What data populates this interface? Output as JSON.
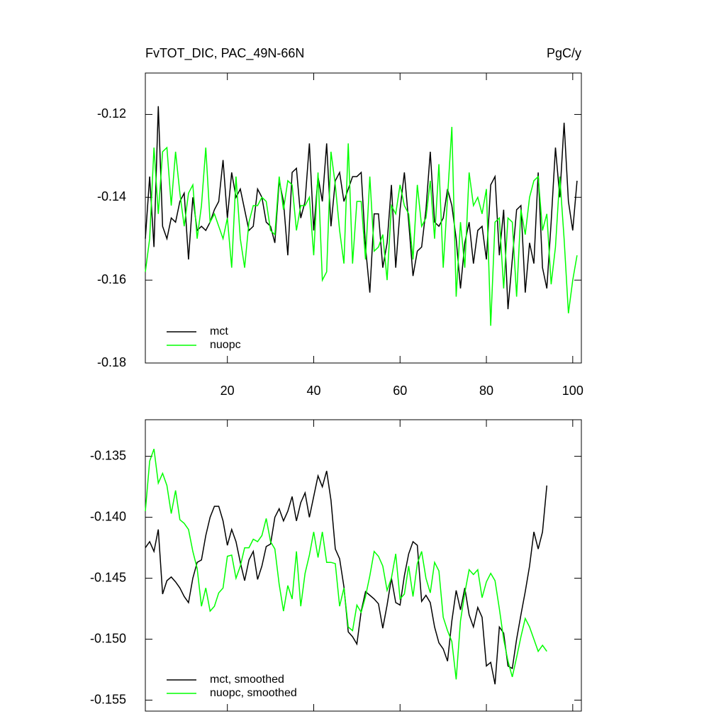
{
  "chart_data": [
    {
      "type": "line",
      "title": "FvTOT_DIC, PAC_49N-66N",
      "units": "PgC/y",
      "xlim": [
        1,
        102
      ],
      "xticks": [
        20,
        40,
        60,
        80,
        100
      ],
      "show_xtick_labels": true,
      "ylim": [
        -0.18,
        -0.11
      ],
      "yticks": [
        -0.18,
        -0.16,
        -0.14,
        -0.12
      ],
      "legend": "lower left",
      "x": [
        1,
        2,
        3,
        4,
        5,
        6,
        7,
        8,
        9,
        10,
        11,
        12,
        13,
        14,
        15,
        16,
        17,
        18,
        19,
        20,
        21,
        22,
        23,
        24,
        25,
        26,
        27,
        28,
        29,
        30,
        31,
        32,
        33,
        34,
        35,
        36,
        37,
        38,
        39,
        40,
        41,
        42,
        43,
        44,
        45,
        46,
        47,
        48,
        49,
        50,
        51,
        52,
        53,
        54,
        55,
        56,
        57,
        58,
        59,
        60,
        61,
        62,
        63,
        64,
        65,
        66,
        67,
        68,
        69,
        70,
        71,
        72,
        73,
        74,
        75,
        76,
        77,
        78,
        79,
        80,
        81,
        82,
        83,
        84,
        85,
        86,
        87,
        88,
        89,
        90,
        91,
        92,
        93,
        94,
        95,
        96,
        97,
        98,
        99,
        100,
        101
      ],
      "series": [
        {
          "name": "mct",
          "color": "#000000",
          "values": [
            -0.15,
            -0.135,
            -0.152,
            -0.118,
            -0.147,
            -0.15,
            -0.145,
            -0.146,
            -0.141,
            -0.139,
            -0.155,
            -0.14,
            -0.148,
            -0.147,
            -0.148,
            -0.146,
            -0.143,
            -0.141,
            -0.131,
            -0.145,
            -0.134,
            -0.14,
            -0.138,
            -0.143,
            -0.148,
            -0.147,
            -0.138,
            -0.14,
            -0.146,
            -0.147,
            -0.151,
            -0.136,
            -0.141,
            -0.154,
            -0.134,
            -0.133,
            -0.145,
            -0.141,
            -0.127,
            -0.148,
            -0.135,
            -0.141,
            -0.127,
            -0.147,
            -0.136,
            -0.134,
            -0.141,
            -0.138,
            -0.135,
            -0.135,
            -0.134,
            -0.152,
            -0.163,
            -0.144,
            -0.144,
            -0.157,
            -0.151,
            -0.137,
            -0.157,
            -0.143,
            -0.134,
            -0.146,
            -0.159,
            -0.153,
            -0.152,
            -0.143,
            -0.129,
            -0.146,
            -0.147,
            -0.145,
            -0.138,
            -0.142,
            -0.15,
            -0.162,
            -0.151,
            -0.146,
            -0.156,
            -0.148,
            -0.147,
            -0.155,
            -0.137,
            -0.135,
            -0.154,
            -0.143,
            -0.167,
            -0.155,
            -0.143,
            -0.142,
            -0.163,
            -0.151,
            -0.156,
            -0.134,
            -0.157,
            -0.162,
            -0.146,
            -0.128,
            -0.14,
            -0.122,
            -0.141,
            -0.148,
            -0.136
          ]
        },
        {
          "name": "nuopc",
          "color": "#00ff00",
          "values": [
            -0.158,
            -0.15,
            -0.128,
            -0.144,
            -0.129,
            -0.128,
            -0.142,
            -0.129,
            -0.139,
            -0.147,
            -0.139,
            -0.137,
            -0.15,
            -0.142,
            -0.128,
            -0.146,
            -0.144,
            -0.147,
            -0.15,
            -0.145,
            -0.157,
            -0.135,
            -0.15,
            -0.157,
            -0.146,
            -0.142,
            -0.142,
            -0.14,
            -0.141,
            -0.148,
            -0.149,
            -0.135,
            -0.143,
            -0.136,
            -0.137,
            -0.148,
            -0.142,
            -0.142,
            -0.14,
            -0.154,
            -0.134,
            -0.16,
            -0.158,
            -0.129,
            -0.137,
            -0.148,
            -0.156,
            -0.127,
            -0.156,
            -0.141,
            -0.141,
            -0.155,
            -0.135,
            -0.153,
            -0.152,
            -0.149,
            -0.16,
            -0.142,
            -0.144,
            -0.137,
            -0.142,
            -0.144,
            -0.155,
            -0.137,
            -0.147,
            -0.145,
            -0.136,
            -0.15,
            -0.132,
            -0.157,
            -0.14,
            -0.123,
            -0.164,
            -0.146,
            -0.157,
            -0.134,
            -0.142,
            -0.14,
            -0.144,
            -0.138,
            -0.171,
            -0.146,
            -0.145,
            -0.162,
            -0.145,
            -0.146,
            -0.164,
            -0.143,
            -0.149,
            -0.14,
            -0.136,
            -0.135,
            -0.148,
            -0.144,
            -0.161,
            -0.152,
            -0.135,
            -0.15,
            -0.168,
            -0.16,
            -0.154
          ]
        }
      ]
    },
    {
      "type": "line",
      "xlim": [
        1,
        102
      ],
      "xticks": [
        20,
        40,
        60,
        80,
        100
      ],
      "show_xtick_labels": false,
      "ylim": [
        -0.1559,
        -0.132
      ],
      "yticks": [
        -0.155,
        {
          "value": -0.15,
          "label": "-0.150"
        },
        -0.145,
        {
          "value": -0.14,
          "label": "-0.140"
        },
        -0.135
      ],
      "legend": "lower left",
      "x": [
        1,
        2,
        3,
        4,
        5,
        6,
        7,
        8,
        9,
        10,
        11,
        12,
        13,
        14,
        15,
        16,
        17,
        18,
        19,
        20,
        21,
        22,
        23,
        24,
        25,
        26,
        27,
        28,
        29,
        30,
        31,
        32,
        33,
        34,
        35,
        36,
        37,
        38,
        39,
        40,
        41,
        42,
        43,
        44,
        45,
        46,
        47,
        48,
        49,
        50,
        51,
        52,
        53,
        54,
        55,
        56,
        57,
        58,
        59,
        60,
        61,
        62,
        63,
        64,
        65,
        66,
        67,
        68,
        69,
        70,
        71,
        72,
        73,
        74,
        75,
        76,
        77,
        78,
        79,
        80,
        81,
        82,
        83,
        84,
        85,
        86,
        87,
        88,
        89,
        90,
        91,
        92,
        93,
        94
      ],
      "series": [
        {
          "name": "mct, smoothed",
          "color": "#000000",
          "values": [
            -0.1425,
            -0.142,
            -0.1428,
            -0.141,
            -0.1463,
            -0.1452,
            -0.1449,
            -0.1453,
            -0.1458,
            -0.1465,
            -0.147,
            -0.145,
            -0.1437,
            -0.1435,
            -0.1415,
            -0.14,
            -0.1391,
            -0.1391,
            -0.1403,
            -0.1423,
            -0.141,
            -0.142,
            -0.1437,
            -0.1452,
            -0.1435,
            -0.1428,
            -0.1451,
            -0.144,
            -0.1424,
            -0.1422,
            -0.14,
            -0.1393,
            -0.1403,
            -0.1395,
            -0.1383,
            -0.1403,
            -0.1388,
            -0.138,
            -0.14,
            -0.1383,
            -0.1366,
            -0.1375,
            -0.1362,
            -0.1386,
            -0.1426,
            -0.1434,
            -0.1457,
            -0.1494,
            -0.1498,
            -0.1504,
            -0.1477,
            -0.1461,
            -0.1464,
            -0.1467,
            -0.1471,
            -0.1491,
            -0.1472,
            -0.145,
            -0.147,
            -0.1472,
            -0.1448,
            -0.143,
            -0.142,
            -0.1423,
            -0.1469,
            -0.1464,
            -0.147,
            -0.149,
            -0.1503,
            -0.1508,
            -0.1518,
            -0.1485,
            -0.146,
            -0.1476,
            -0.1458,
            -0.148,
            -0.149,
            -0.1474,
            -0.1482,
            -0.1522,
            -0.1519,
            -0.1537,
            -0.149,
            -0.1495,
            -0.1522,
            -0.1524,
            -0.15,
            -0.148,
            -0.1461,
            -0.144,
            -0.1412,
            -0.1426,
            -0.1412,
            -0.1374
          ]
        },
        {
          "name": "nuopc, smoothed",
          "color": "#00ff00",
          "values": [
            -0.1395,
            -0.1354,
            -0.1344,
            -0.1372,
            -0.1364,
            -0.1374,
            -0.1397,
            -0.1378,
            -0.1402,
            -0.1405,
            -0.141,
            -0.1428,
            -0.1442,
            -0.1473,
            -0.1458,
            -0.1477,
            -0.1473,
            -0.1462,
            -0.1458,
            -0.1432,
            -0.1431,
            -0.145,
            -0.144,
            -0.1425,
            -0.1425,
            -0.1418,
            -0.142,
            -0.1415,
            -0.1401,
            -0.142,
            -0.1426,
            -0.1455,
            -0.1477,
            -0.1456,
            -0.1467,
            -0.1428,
            -0.1473,
            -0.1446,
            -0.1431,
            -0.1412,
            -0.1433,
            -0.1412,
            -0.1437,
            -0.1437,
            -0.1438,
            -0.1473,
            -0.1458,
            -0.149,
            -0.1493,
            -0.1472,
            -0.1478,
            -0.1465,
            -0.1448,
            -0.1428,
            -0.1432,
            -0.144,
            -0.146,
            -0.145,
            -0.143,
            -0.1467,
            -0.1463,
            -0.144,
            -0.1465,
            -0.1438,
            -0.1428,
            -0.145,
            -0.1462,
            -0.1437,
            -0.1444,
            -0.1482,
            -0.1493,
            -0.1502,
            -0.1533,
            -0.1485,
            -0.1462,
            -0.1443,
            -0.1447,
            -0.1443,
            -0.1466,
            -0.1453,
            -0.1446,
            -0.1452,
            -0.1475,
            -0.15,
            -0.1518,
            -0.1531,
            -0.1515,
            -0.1498,
            -0.1483,
            -0.149,
            -0.15,
            -0.151,
            -0.1505,
            -0.151
          ]
        }
      ]
    }
  ]
}
